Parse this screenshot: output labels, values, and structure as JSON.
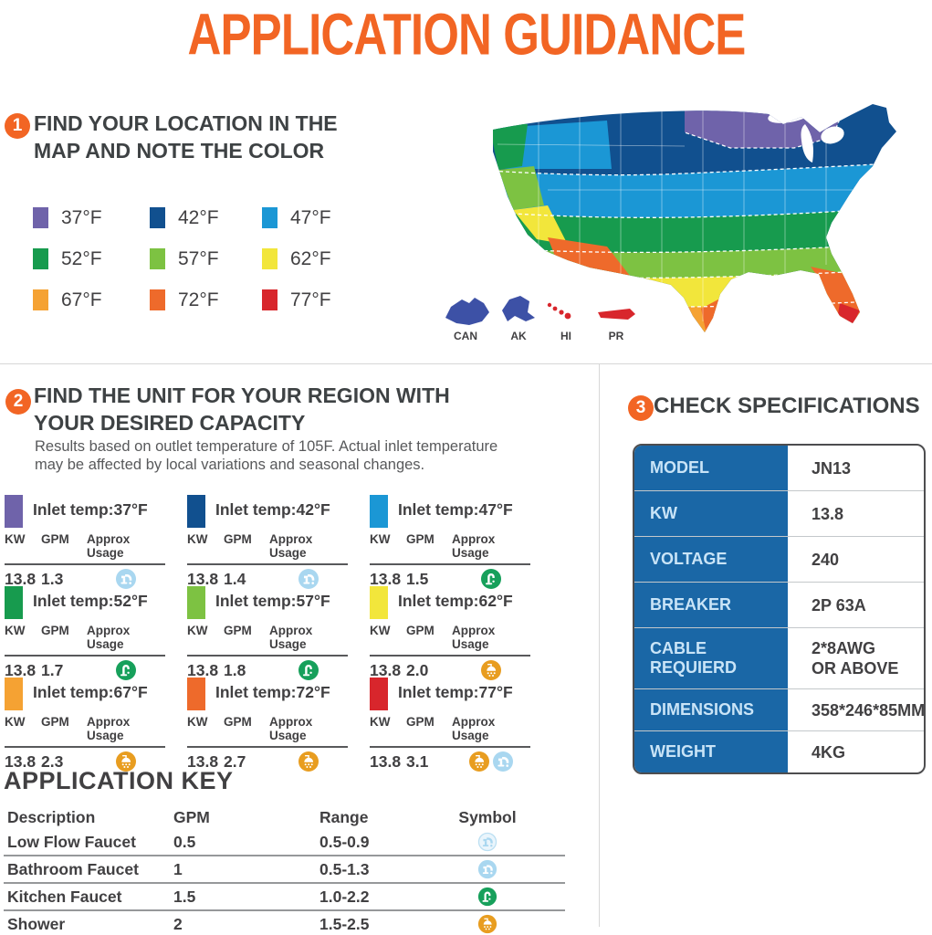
{
  "page": {
    "title": "APPLICATION GUIDANCE"
  },
  "colors": {
    "accent_orange": "#F26524",
    "heading_text": "#414042",
    "body_text": "#58595B",
    "table_blue": "#1A67A6",
    "divider": "#D7D7D7"
  },
  "section1": {
    "number": "1",
    "title_line1": "FIND YOUR LOCATION IN THE",
    "title_line2": "MAP AND NOTE THE COLOR",
    "legend": [
      {
        "temp": "37°F",
        "color": "#6F63AA"
      },
      {
        "temp": "42°F",
        "color": "#11508F"
      },
      {
        "temp": "47°F",
        "color": "#1B97D5"
      },
      {
        "temp": "52°F",
        "color": "#179B4E"
      },
      {
        "temp": "57°F",
        "color": "#7DC242"
      },
      {
        "temp": "62°F",
        "color": "#F2E63B"
      },
      {
        "temp": "67°F",
        "color": "#F5A233"
      },
      {
        "temp": "72°F",
        "color": "#EE6A2B"
      },
      {
        "temp": "77°F",
        "color": "#D8262C"
      }
    ],
    "map_labels": {
      "can": "CAN",
      "ak": "AK",
      "hi": "HI",
      "pr": "PR"
    }
  },
  "section2": {
    "number": "2",
    "title_line1": "FIND THE UNIT FOR YOUR REGION WITH",
    "title_line2": "YOUR DESIRED CAPACITY",
    "subtitle_line1": "Results based on outlet temperature of 105F. Actual inlet temperature",
    "subtitle_line2": "may be affected by local variations and seasonal changes.",
    "col_headers": {
      "kw": "KW",
      "gpm": "GPM",
      "usage": "Approx Usage"
    },
    "blocks": [
      {
        "label": "Inlet temp:37°F",
        "color": "#6F63AA",
        "kw": "13.8",
        "gpm": "1.3",
        "icons": [
          "bathroom-faucet"
        ]
      },
      {
        "label": "Inlet temp:42°F",
        "color": "#11508F",
        "kw": "13.8",
        "gpm": "1.4",
        "icons": [
          "bathroom-faucet"
        ]
      },
      {
        "label": "Inlet temp:47°F",
        "color": "#1B97D5",
        "kw": "13.8",
        "gpm": "1.5",
        "icons": [
          "kitchen-faucet"
        ]
      },
      {
        "label": "Inlet temp:52°F",
        "color": "#179B4E",
        "kw": "13.8",
        "gpm": "1.7",
        "icons": [
          "kitchen-faucet"
        ]
      },
      {
        "label": "Inlet temp:57°F",
        "color": "#7DC242",
        "kw": "13.8",
        "gpm": "1.8",
        "icons": [
          "kitchen-faucet"
        ]
      },
      {
        "label": "Inlet temp:62°F",
        "color": "#F2E63B",
        "kw": "13.8",
        "gpm": "2.0",
        "icons": [
          "shower"
        ]
      },
      {
        "label": "Inlet temp:67°F",
        "color": "#F5A233",
        "kw": "13.8",
        "gpm": "2.3",
        "icons": [
          "shower"
        ]
      },
      {
        "label": "Inlet temp:72°F",
        "color": "#EE6A2B",
        "kw": "13.8",
        "gpm": "2.7",
        "icons": [
          "shower"
        ]
      },
      {
        "label": "Inlet temp:77°F",
        "color": "#D8262C",
        "kw": "13.8",
        "gpm": "3.1",
        "icons": [
          "shower",
          "bathroom-faucet"
        ]
      }
    ]
  },
  "section3": {
    "number": "3",
    "title": "CHECK SPECIFICATIONS",
    "rows": [
      {
        "label": "MODEL",
        "value": "JN13"
      },
      {
        "label": "KW",
        "value": "13.8"
      },
      {
        "label": "VOLTAGE",
        "value": "240"
      },
      {
        "label": "BREAKER",
        "value": "2P 63A"
      },
      {
        "label": "CABLE REQUIERD",
        "value": "2*8AWG\nOR ABOVE"
      },
      {
        "label": "DIMENSIONS",
        "value": "358*246*85MM"
      },
      {
        "label": "WEIGHT",
        "value": "4KG"
      }
    ]
  },
  "application_key": {
    "title": "APPLICATION KEY",
    "headers": [
      "Description",
      "GPM",
      "Range",
      "Symbol"
    ],
    "rows": [
      {
        "description": "Low Flow Faucet",
        "gpm": "0.5",
        "range": "0.5-0.9",
        "symbol": "low-flow-faucet"
      },
      {
        "description": "Bathroom Faucet",
        "gpm": "1",
        "range": "0.5-1.3",
        "symbol": "bathroom-faucet"
      },
      {
        "description": "Kitchen Faucet",
        "gpm": "1.5",
        "range": "1.0-2.2",
        "symbol": "kitchen-faucet"
      },
      {
        "description": "Shower",
        "gpm": "2",
        "range": "1.5-2.5",
        "symbol": "shower"
      }
    ]
  }
}
